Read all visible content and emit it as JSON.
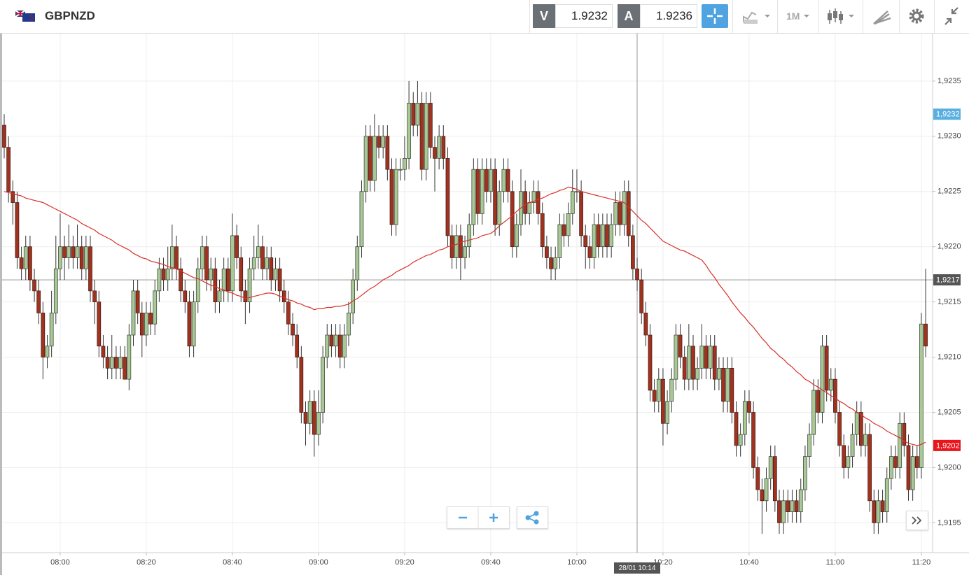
{
  "header": {
    "symbol": "GBPNZD",
    "bid": {
      "label": "V",
      "value": 1.9232
    },
    "ask": {
      "label": "A",
      "value": 1.9236
    },
    "timeframe": "1M"
  },
  "chart_data": {
    "type": "candlestick",
    "categories": [
      null,
      null,
      null,
      null,
      null,
      null,
      null,
      null,
      null,
      null,
      null,
      null,
      null,
      "08:00",
      null,
      null,
      null,
      null,
      null,
      null,
      null,
      null,
      null,
      null,
      null,
      null,
      null,
      null,
      null,
      null,
      null,
      null,
      null,
      "08:20",
      null,
      null,
      null,
      null,
      null,
      null,
      null,
      null,
      null,
      null,
      null,
      null,
      null,
      null,
      null,
      null,
      null,
      null,
      null,
      "08:40",
      null,
      null,
      null,
      null,
      null,
      null,
      null,
      null,
      null,
      null,
      null,
      null,
      null,
      null,
      null,
      null,
      null,
      null,
      null,
      "09:00",
      null,
      null,
      null,
      null,
      null,
      null,
      null,
      null,
      null,
      null,
      null,
      null,
      null,
      null,
      null,
      null,
      null,
      null,
      null,
      "09:20",
      null,
      null,
      null,
      null,
      null,
      null,
      null,
      null,
      null,
      null,
      null,
      null,
      null,
      null,
      null,
      null,
      null,
      null,
      null,
      "09:40",
      null,
      null,
      null,
      null,
      null,
      null,
      null,
      null,
      null,
      null,
      null,
      null,
      null,
      null,
      null,
      null,
      null,
      null,
      null,
      "10:00",
      null,
      null,
      null,
      null,
      null,
      null,
      null,
      null,
      null,
      null,
      null,
      null,
      null,
      null,
      null,
      null,
      null,
      null,
      null,
      "10:20",
      null,
      null,
      null,
      null,
      null,
      null,
      null,
      null,
      null,
      null,
      null,
      null,
      null,
      null,
      null,
      null,
      null,
      null,
      null,
      "10:40",
      null,
      null,
      null,
      null,
      null,
      null,
      null,
      null,
      null,
      null,
      null,
      null,
      null,
      null,
      null,
      null,
      null,
      null,
      null,
      "11:00",
      null,
      null,
      null,
      null,
      null,
      null,
      null,
      null,
      null,
      null,
      null,
      null,
      null,
      null,
      null,
      null,
      null,
      null,
      null,
      "11:20",
      null
    ],
    "open": [
      1.9231,
      1.9229,
      1.9225,
      1.9224,
      1.9219,
      1.9218,
      1.922,
      1.9217,
      1.9216,
      1.9214,
      1.921,
      1.9211,
      1.9214,
      1.9218,
      1.922,
      1.9219,
      1.922,
      1.9219,
      1.922,
      1.9218,
      1.922,
      1.9216,
      1.9215,
      1.9211,
      1.921,
      1.9209,
      1.921,
      1.9209,
      1.921,
      1.9208,
      1.9212,
      1.9216,
      1.9214,
      1.9212,
      1.9214,
      1.9213,
      1.9216,
      1.9218,
      1.9217,
      1.9218,
      1.922,
      1.9218,
      1.9216,
      1.9215,
      1.9211,
      1.9215,
      1.9218,
      1.922,
      1.9217,
      1.9218,
      1.9215,
      1.9216,
      1.9218,
      1.9216,
      1.9221,
      1.9219,
      1.9216,
      1.9215,
      1.9218,
      1.9219,
      1.922,
      1.9218,
      1.9219,
      1.9217,
      1.9218,
      1.9216,
      1.9215,
      1.9213,
      1.9212,
      1.921,
      1.9205,
      1.9204,
      1.9206,
      1.9203,
      1.9205,
      1.921,
      1.9212,
      1.9211,
      1.9212,
      1.921,
      1.9212,
      1.9214,
      1.9217,
      1.922,
      1.9225,
      1.923,
      1.9226,
      1.923,
      1.9229,
      1.923,
      1.9227,
      1.9222,
      1.9227,
      1.9227,
      1.9228,
      1.9233,
      1.9231,
      1.9233,
      1.9227,
      1.9233,
      1.9229,
      1.9228,
      1.923,
      1.9228,
      1.9221,
      1.9219,
      1.9221,
      1.9219,
      1.922,
      1.9222,
      1.9227,
      1.9223,
      1.9227,
      1.9225,
      1.9227,
      1.9222,
      1.9225,
      1.9227,
      1.9225,
      1.922,
      1.9222,
      1.9225,
      1.9223,
      1.9224,
      1.9225,
      1.9223,
      1.922,
      1.9219,
      1.9218,
      1.9219,
      1.9222,
      1.9221,
      1.9223,
      1.9225,
      1.9225,
      1.9221,
      1.922,
      1.9219,
      1.9222,
      1.922,
      1.9222,
      1.922,
      1.9222,
      1.9224,
      1.9222,
      1.9225,
      1.9221,
      1.9218,
      1.9217,
      1.9214,
      1.9212,
      1.9207,
      1.9206,
      1.9208,
      1.9204,
      1.9206,
      1.9208,
      1.9212,
      1.921,
      1.9208,
      1.9211,
      1.9208,
      1.9209,
      1.9211,
      1.9209,
      1.9211,
      1.9208,
      1.9209,
      1.9206,
      1.9209,
      1.9205,
      1.9202,
      1.9203,
      1.9206,
      1.9205,
      1.92,
      1.9198,
      1.9197,
      1.9199,
      1.9201,
      1.9197,
      1.9195,
      1.9197,
      1.9196,
      1.9197,
      1.9196,
      1.9198,
      1.9201,
      1.9203,
      1.9207,
      1.9205,
      1.9211,
      1.9207,
      1.9208,
      1.9205,
      1.9202,
      1.92,
      1.9201,
      1.9203,
      1.9205,
      1.9202,
      1.9203,
      1.9197,
      1.9195,
      1.9197,
      1.9196,
      1.9199,
      1.9201,
      1.92,
      1.9204,
      1.9202,
      1.9198,
      1.9201,
      1.92,
      1.9213
    ],
    "close": [
      1.9229,
      1.9225,
      1.9224,
      1.9219,
      1.9218,
      1.922,
      1.9217,
      1.9216,
      1.9214,
      1.921,
      1.9211,
      1.9214,
      1.9218,
      1.922,
      1.9219,
      1.922,
      1.9219,
      1.922,
      1.9218,
      1.922,
      1.9216,
      1.9215,
      1.9211,
      1.921,
      1.9209,
      1.921,
      1.9209,
      1.921,
      1.9208,
      1.9212,
      1.9216,
      1.9214,
      1.9212,
      1.9214,
      1.9213,
      1.9216,
      1.9218,
      1.9217,
      1.9218,
      1.922,
      1.9218,
      1.9216,
      1.9215,
      1.9211,
      1.9215,
      1.9218,
      1.922,
      1.9217,
      1.9218,
      1.9215,
      1.9216,
      1.9218,
      1.9216,
      1.9221,
      1.9219,
      1.9216,
      1.9215,
      1.9218,
      1.9219,
      1.922,
      1.9218,
      1.9219,
      1.9217,
      1.9218,
      1.9216,
      1.9215,
      1.9213,
      1.9212,
      1.921,
      1.9205,
      1.9204,
      1.9206,
      1.9203,
      1.9205,
      1.921,
      1.9212,
      1.9211,
      1.9212,
      1.921,
      1.9212,
      1.9214,
      1.9217,
      1.922,
      1.9225,
      1.923,
      1.9226,
      1.923,
      1.9229,
      1.923,
      1.9227,
      1.9222,
      1.9227,
      1.9227,
      1.9228,
      1.9233,
      1.9231,
      1.9233,
      1.9227,
      1.9233,
      1.9229,
      1.9228,
      1.923,
      1.9228,
      1.9221,
      1.9219,
      1.9221,
      1.9219,
      1.922,
      1.9222,
      1.9227,
      1.9223,
      1.9227,
      1.9225,
      1.9227,
      1.9222,
      1.9225,
      1.9227,
      1.9225,
      1.922,
      1.9222,
      1.9225,
      1.9223,
      1.9224,
      1.9225,
      1.9223,
      1.922,
      1.9219,
      1.9218,
      1.9219,
      1.9222,
      1.9221,
      1.9223,
      1.9225,
      1.9225,
      1.9221,
      1.922,
      1.9219,
      1.9222,
      1.922,
      1.9222,
      1.922,
      1.9222,
      1.9224,
      1.9222,
      1.9225,
      1.9221,
      1.9218,
      1.9217,
      1.9214,
      1.9212,
      1.9207,
      1.9206,
      1.9208,
      1.9204,
      1.9206,
      1.9208,
      1.9212,
      1.921,
      1.9208,
      1.9211,
      1.9208,
      1.9209,
      1.9211,
      1.9209,
      1.9211,
      1.9208,
      1.9209,
      1.9206,
      1.9209,
      1.9205,
      1.9202,
      1.9203,
      1.9206,
      1.9205,
      1.92,
      1.9198,
      1.9197,
      1.9199,
      1.9201,
      1.9197,
      1.9195,
      1.9197,
      1.9196,
      1.9197,
      1.9196,
      1.9198,
      1.9201,
      1.9203,
      1.9207,
      1.9205,
      1.9211,
      1.9207,
      1.9208,
      1.9205,
      1.9202,
      1.92,
      1.9201,
      1.9203,
      1.9205,
      1.9202,
      1.9203,
      1.9197,
      1.9195,
      1.9197,
      1.9196,
      1.9199,
      1.9201,
      1.92,
      1.9204,
      1.9202,
      1.9198,
      1.9201,
      1.92,
      1.9213,
      1.9211
    ],
    "high": [
      1.9232,
      1.923,
      1.9226,
      1.9225,
      1.922,
      1.9221,
      1.9221,
      1.9218,
      1.9217,
      1.9215,
      1.9212,
      1.9216,
      1.9221,
      1.9223,
      1.9221,
      1.9222,
      1.9221,
      1.9222,
      1.9221,
      1.9221,
      1.9221,
      1.9217,
      1.9216,
      1.9212,
      1.9211,
      1.9212,
      1.9211,
      1.9211,
      1.9211,
      1.9213,
      1.9217,
      1.9217,
      1.9215,
      1.9215,
      1.9215,
      1.9217,
      1.9219,
      1.9219,
      1.922,
      1.9222,
      1.9221,
      1.9219,
      1.9217,
      1.9216,
      1.9216,
      1.9219,
      1.9221,
      1.9221,
      1.9219,
      1.9219,
      1.9217,
      1.9219,
      1.9219,
      1.9223,
      1.9222,
      1.922,
      1.9217,
      1.9219,
      1.9221,
      1.9222,
      1.9221,
      1.922,
      1.922,
      1.9219,
      1.9219,
      1.9217,
      1.9216,
      1.9214,
      1.9213,
      1.9211,
      1.9206,
      1.9207,
      1.9207,
      1.9207,
      1.9211,
      1.9213,
      1.9213,
      1.9213,
      1.9213,
      1.9213,
      1.9215,
      1.9218,
      1.9221,
      1.9226,
      1.9231,
      1.9231,
      1.9232,
      1.9231,
      1.9231,
      1.9231,
      1.9228,
      1.9228,
      1.9228,
      1.923,
      1.9235,
      1.9234,
      1.9235,
      1.9234,
      1.9234,
      1.9234,
      1.923,
      1.9231,
      1.9231,
      1.9229,
      1.9222,
      1.9222,
      1.9222,
      1.9221,
      1.9223,
      1.9228,
      1.9228,
      1.9228,
      1.9228,
      1.9228,
      1.9228,
      1.9226,
      1.9228,
      1.9228,
      1.9226,
      1.9223,
      1.9227,
      1.9226,
      1.9225,
      1.9226,
      1.9226,
      1.9224,
      1.9221,
      1.922,
      1.922,
      1.9223,
      1.9223,
      1.9224,
      1.9227,
      1.9227,
      1.9226,
      1.9222,
      1.9221,
      1.9223,
      1.9223,
      1.9223,
      1.9223,
      1.9223,
      1.9225,
      1.9225,
      1.9226,
      1.9226,
      1.9222,
      1.9219,
      1.9218,
      1.9215,
      1.9213,
      1.9208,
      1.9209,
      1.9209,
      1.9207,
      1.9209,
      1.9213,
      1.9213,
      1.9211,
      1.9213,
      1.9212,
      1.921,
      1.9213,
      1.9212,
      1.9212,
      1.9212,
      1.921,
      1.921,
      1.921,
      1.921,
      1.9206,
      1.9204,
      1.9207,
      1.9207,
      1.9206,
      1.9201,
      1.9199,
      1.92,
      1.9202,
      1.9202,
      1.9198,
      1.9198,
      1.9198,
      1.9198,
      1.9198,
      1.9199,
      1.9202,
      1.9204,
      1.9208,
      1.9208,
      1.9212,
      1.9212,
      1.9209,
      1.9209,
      1.9206,
      1.9203,
      1.9202,
      1.9204,
      1.9206,
      1.9206,
      1.9204,
      1.9204,
      1.9198,
      1.9198,
      1.9198,
      1.92,
      1.9202,
      1.9202,
      1.9205,
      1.9205,
      1.9203,
      1.9202,
      1.9202,
      1.9214,
      1.9218
    ],
    "low": [
      1.9228,
      1.9224,
      1.9222,
      1.9218,
      1.9217,
      1.9217,
      1.9216,
      1.9215,
      1.9213,
      1.9208,
      1.9209,
      1.921,
      1.9213,
      1.9217,
      1.9217,
      1.9218,
      1.9218,
      1.9218,
      1.9217,
      1.9217,
      1.9215,
      1.9213,
      1.921,
      1.9209,
      1.9208,
      1.9208,
      1.9208,
      1.9208,
      1.9208,
      1.9207,
      1.9211,
      1.9213,
      1.921,
      1.9211,
      1.9212,
      1.9212,
      1.9215,
      1.9216,
      1.9216,
      1.9217,
      1.9217,
      1.9215,
      1.9214,
      1.921,
      1.921,
      1.9214,
      1.9217,
      1.9216,
      1.9216,
      1.9214,
      1.9214,
      1.9215,
      1.9215,
      1.9215,
      1.9218,
      1.9215,
      1.9213,
      1.9214,
      1.9217,
      1.9218,
      1.9217,
      1.9217,
      1.9216,
      1.9216,
      1.9215,
      1.9214,
      1.9212,
      1.9211,
      1.9209,
      1.9204,
      1.9202,
      1.9203,
      1.9201,
      1.9202,
      1.9204,
      1.9209,
      1.921,
      1.921,
      1.9209,
      1.9209,
      1.9211,
      1.9213,
      1.9216,
      1.9219,
      1.9224,
      1.9225,
      1.9225,
      1.9228,
      1.9228,
      1.9226,
      1.9221,
      1.9221,
      1.9226,
      1.9226,
      1.9227,
      1.923,
      1.923,
      1.9226,
      1.9226,
      1.9228,
      1.9225,
      1.9227,
      1.9227,
      1.922,
      1.9218,
      1.9218,
      1.9217,
      1.9218,
      1.9219,
      1.9221,
      1.9222,
      1.9222,
      1.9224,
      1.9224,
      1.9221,
      1.9221,
      1.9224,
      1.9224,
      1.9219,
      1.9219,
      1.9221,
      1.9222,
      1.9222,
      1.9223,
      1.9222,
      1.9219,
      1.9218,
      1.9217,
      1.9217,
      1.9218,
      1.922,
      1.922,
      1.9222,
      1.9224,
      1.922,
      1.9218,
      1.9218,
      1.9218,
      1.9219,
      1.9219,
      1.9219,
      1.9219,
      1.9221,
      1.9221,
      1.9221,
      1.922,
      1.9217,
      1.9216,
      1.9213,
      1.9211,
      1.9206,
      1.9205,
      1.9205,
      1.9202,
      1.9203,
      1.9205,
      1.9207,
      1.9209,
      1.9207,
      1.9207,
      1.9207,
      1.9207,
      1.9208,
      1.9208,
      1.9208,
      1.9207,
      1.9207,
      1.9205,
      1.9205,
      1.9204,
      1.9201,
      1.9201,
      1.9202,
      1.9204,
      1.9199,
      1.9197,
      1.9194,
      1.9196,
      1.9198,
      1.9196,
      1.9194,
      1.9194,
      1.9195,
      1.9195,
      1.9195,
      1.9195,
      1.9197,
      1.92,
      1.9202,
      1.9204,
      1.9204,
      1.9206,
      1.9206,
      1.9204,
      1.9201,
      1.9199,
      1.9199,
      1.92,
      1.9202,
      1.9201,
      1.9201,
      1.9196,
      1.9194,
      1.9194,
      1.9195,
      1.9195,
      1.9198,
      1.9199,
      1.9199,
      1.9201,
      1.9197,
      1.9197,
      1.9199,
      1.9199,
      1.921
    ],
    "up_color": "#a8c896",
    "down_color": "#a0321f",
    "ma": {
      "color": "#d9302a",
      "values": [
        1.9225,
        1.92249,
        1.92248,
        1.92247,
        1.92246,
        1.92244,
        1.92243,
        1.92242,
        1.92241,
        1.9224,
        1.92238,
        1.92236,
        1.92234,
        1.92232,
        1.9223,
        1.92228,
        1.92226,
        1.92224,
        1.92221,
        1.92219,
        1.92217,
        1.92215,
        1.92212,
        1.9221,
        1.92208,
        1.92206,
        1.92203,
        1.92201,
        1.92199,
        1.92197,
        1.92194,
        1.92192,
        1.9219,
        1.92189,
        1.92187,
        1.92186,
        1.92185,
        1.92184,
        1.92182,
        1.92181,
        1.9218,
        1.92178,
        1.92176,
        1.92174,
        1.92172,
        1.92171,
        1.92169,
        1.92167,
        1.92165,
        1.92164,
        1.92162,
        1.92161,
        1.92159,
        1.92158,
        1.92156,
        1.92155,
        1.92153,
        1.92154,
        1.92155,
        1.92156,
        1.92157,
        1.92158,
        1.92158,
        1.92157,
        1.92155,
        1.92154,
        1.92152,
        1.92151,
        1.92149,
        1.92148,
        1.92146,
        1.92145,
        1.92143,
        1.92144,
        1.92144,
        1.92145,
        1.92145,
        1.92146,
        1.92146,
        1.92147,
        1.92148,
        1.92151,
        1.92153,
        1.92156,
        1.92159,
        1.92162,
        1.92164,
        1.92167,
        1.9217,
        1.92172,
        1.92174,
        1.92177,
        1.92179,
        1.92181,
        1.92183,
        1.92186,
        1.92188,
        1.9219,
        1.92192,
        1.92193,
        1.92195,
        1.92197,
        1.92198,
        1.922,
        1.92201,
        1.92202,
        1.92204,
        1.92205,
        1.92206,
        1.92207,
        1.92208,
        1.9221,
        1.92211,
        1.92212,
        1.92215,
        1.92219,
        1.92222,
        1.92225,
        1.92228,
        1.92232,
        1.92235,
        1.92238,
        1.9224,
        1.92241,
        1.92243,
        1.92244,
        1.92246,
        1.92248,
        1.92249,
        1.92251,
        1.92252,
        1.92254,
        1.92253,
        1.92252,
        1.9225,
        1.92249,
        1.92248,
        1.92247,
        1.92246,
        1.92245,
        1.92244,
        1.92243,
        1.92242,
        1.92241,
        1.9224,
        1.92236,
        1.92232,
        1.92228,
        1.92224,
        1.92221,
        1.92217,
        1.92213,
        1.92209,
        1.92205,
        1.92203,
        1.92201,
        1.92199,
        1.92197,
        1.92196,
        1.92194,
        1.92192,
        1.9219,
        1.92188,
        1.92183,
        1.92177,
        1.92172,
        1.92166,
        1.92161,
        1.92156,
        1.9215,
        1.92145,
        1.9214,
        1.92136,
        1.92131,
        1.92127,
        1.92122,
        1.92117,
        1.92113,
        1.92108,
        1.92105,
        1.92101,
        1.92098,
        1.92094,
        1.92091,
        1.92087,
        1.92084,
        1.9208,
        1.92078,
        1.92075,
        1.92073,
        1.9207,
        1.92068,
        1.92065,
        1.92063,
        1.9206,
        1.92058,
        1.92055,
        1.92053,
        1.9205,
        1.92048,
        1.92045,
        1.92043,
        1.9204,
        1.92038,
        1.92036,
        1.92033,
        1.92031,
        1.92029,
        1.92027,
        1.92024,
        1.92022,
        1.92021,
        1.9202,
        1.92021,
        1.92023
      ]
    },
    "ylim": [
      1.91923,
      1.92393
    ],
    "yticks": [
      {
        "value": 1.9195,
        "label": "1,9195"
      },
      {
        "value": 1.92,
        "label": "1,9200"
      },
      {
        "value": 1.9205,
        "label": "1,9205"
      },
      {
        "value": 1.921,
        "label": "1,9210"
      },
      {
        "value": 1.9215,
        "label": "1,9215"
      },
      {
        "value": 1.922,
        "label": "1,9220"
      },
      {
        "value": 1.9225,
        "label": "1,9225"
      },
      {
        "value": 1.923,
        "label": "1,9230"
      },
      {
        "value": 1.9235,
        "label": "1,9235"
      }
    ],
    "grid": true,
    "price_markers": [
      {
        "value": 1.9232,
        "label": "1,9232",
        "color": "#5aafe0"
      },
      {
        "value": 1.9202,
        "label": "1,9202",
        "color": "#e8151b"
      }
    ],
    "crosshair": {
      "label": "28/01 10:14",
      "price": {
        "value": 1.9217,
        "label": "1,9217"
      },
      "color": "#555555"
    }
  }
}
